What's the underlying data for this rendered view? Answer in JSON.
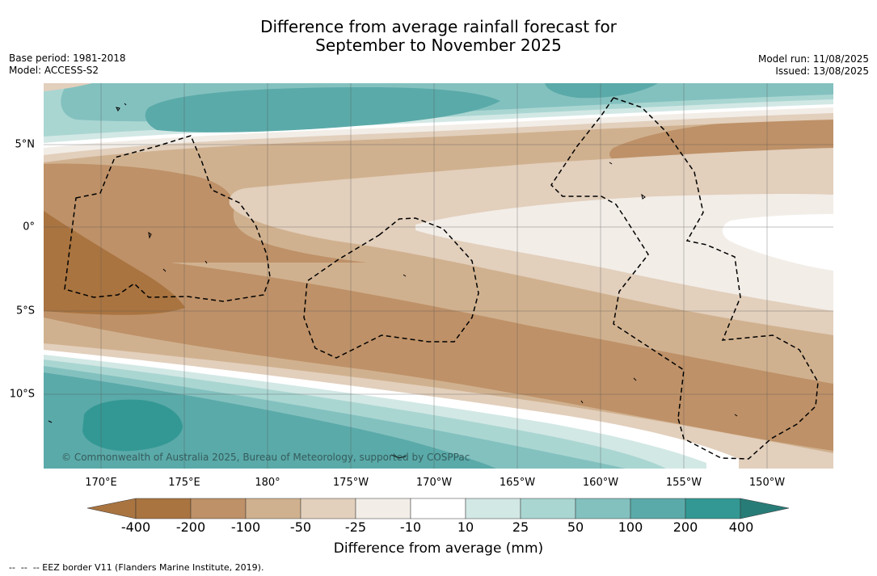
{
  "header": {
    "title_line1": "Difference from average rainfall forecast for",
    "title_line2": "September to November 2025",
    "base_period": "Base period: 1981-2018",
    "model": "Model: ACCESS-S2",
    "model_run": "Model run: 11/08/2025",
    "issued": "Issued: 13/08/2025"
  },
  "map": {
    "copyright": "© Commonwealth of Australia 2025, Bureau of Meteorology, supported by COSPPac",
    "lon_ticks": [
      "170°E",
      "175°E",
      "180°",
      "175°W",
      "170°W",
      "165°W",
      "160°W",
      "155°W",
      "150°W"
    ],
    "lat_ticks": [
      "5°N",
      "0°",
      "5°S",
      "10°S"
    ],
    "colors": {
      "c-400": "#a97440",
      "c-200": "#be9168",
      "c-100": "#d0b18f",
      "c-50": "#e2cfbc",
      "c-25": "#f2ede7",
      "c-10": "#ffffff",
      "c10": "#d2e8e5",
      "c25": "#aad6d2",
      "c50": "#83c1bf",
      "c100": "#5aaaa9",
      "c200": "#339893",
      "c400": "#287c78"
    }
  },
  "colorbar": {
    "labels": [
      "-400",
      "-200",
      "-100",
      "-50",
      "-25",
      "-10",
      "10",
      "25",
      "50",
      "100",
      "200",
      "400"
    ],
    "title": "Difference from average (mm)"
  },
  "footnote": "--  --  -- EEZ border V11 (Flanders Marine Institute, 2019)."
}
